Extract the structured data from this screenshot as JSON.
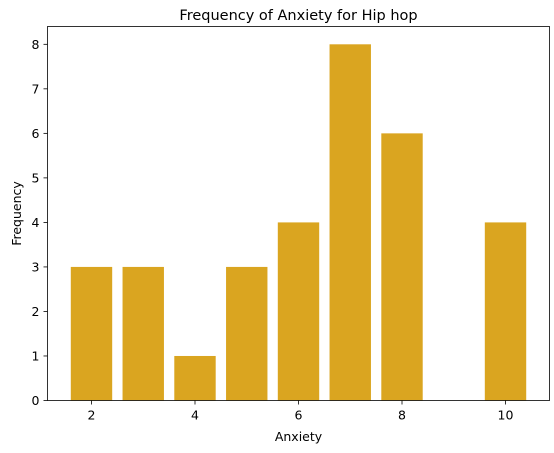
{
  "chart_data": {
    "type": "bar",
    "title": "Frequency of Anxiety for Hip hop",
    "xlabel": "Anxiety",
    "ylabel": "Frequency",
    "x": [
      2,
      3,
      4,
      5,
      6,
      7,
      8,
      10
    ],
    "values": [
      3,
      3,
      1,
      3,
      4,
      8,
      6,
      4
    ],
    "xlim": [
      1.15,
      10.85
    ],
    "ylim": [
      0,
      8.4
    ],
    "xticks": [
      2,
      4,
      6,
      8,
      10
    ],
    "yticks": [
      0,
      1,
      2,
      3,
      4,
      5,
      6,
      7,
      8
    ],
    "bar_color": "#DAA520",
    "grid": false,
    "legend": "none"
  }
}
